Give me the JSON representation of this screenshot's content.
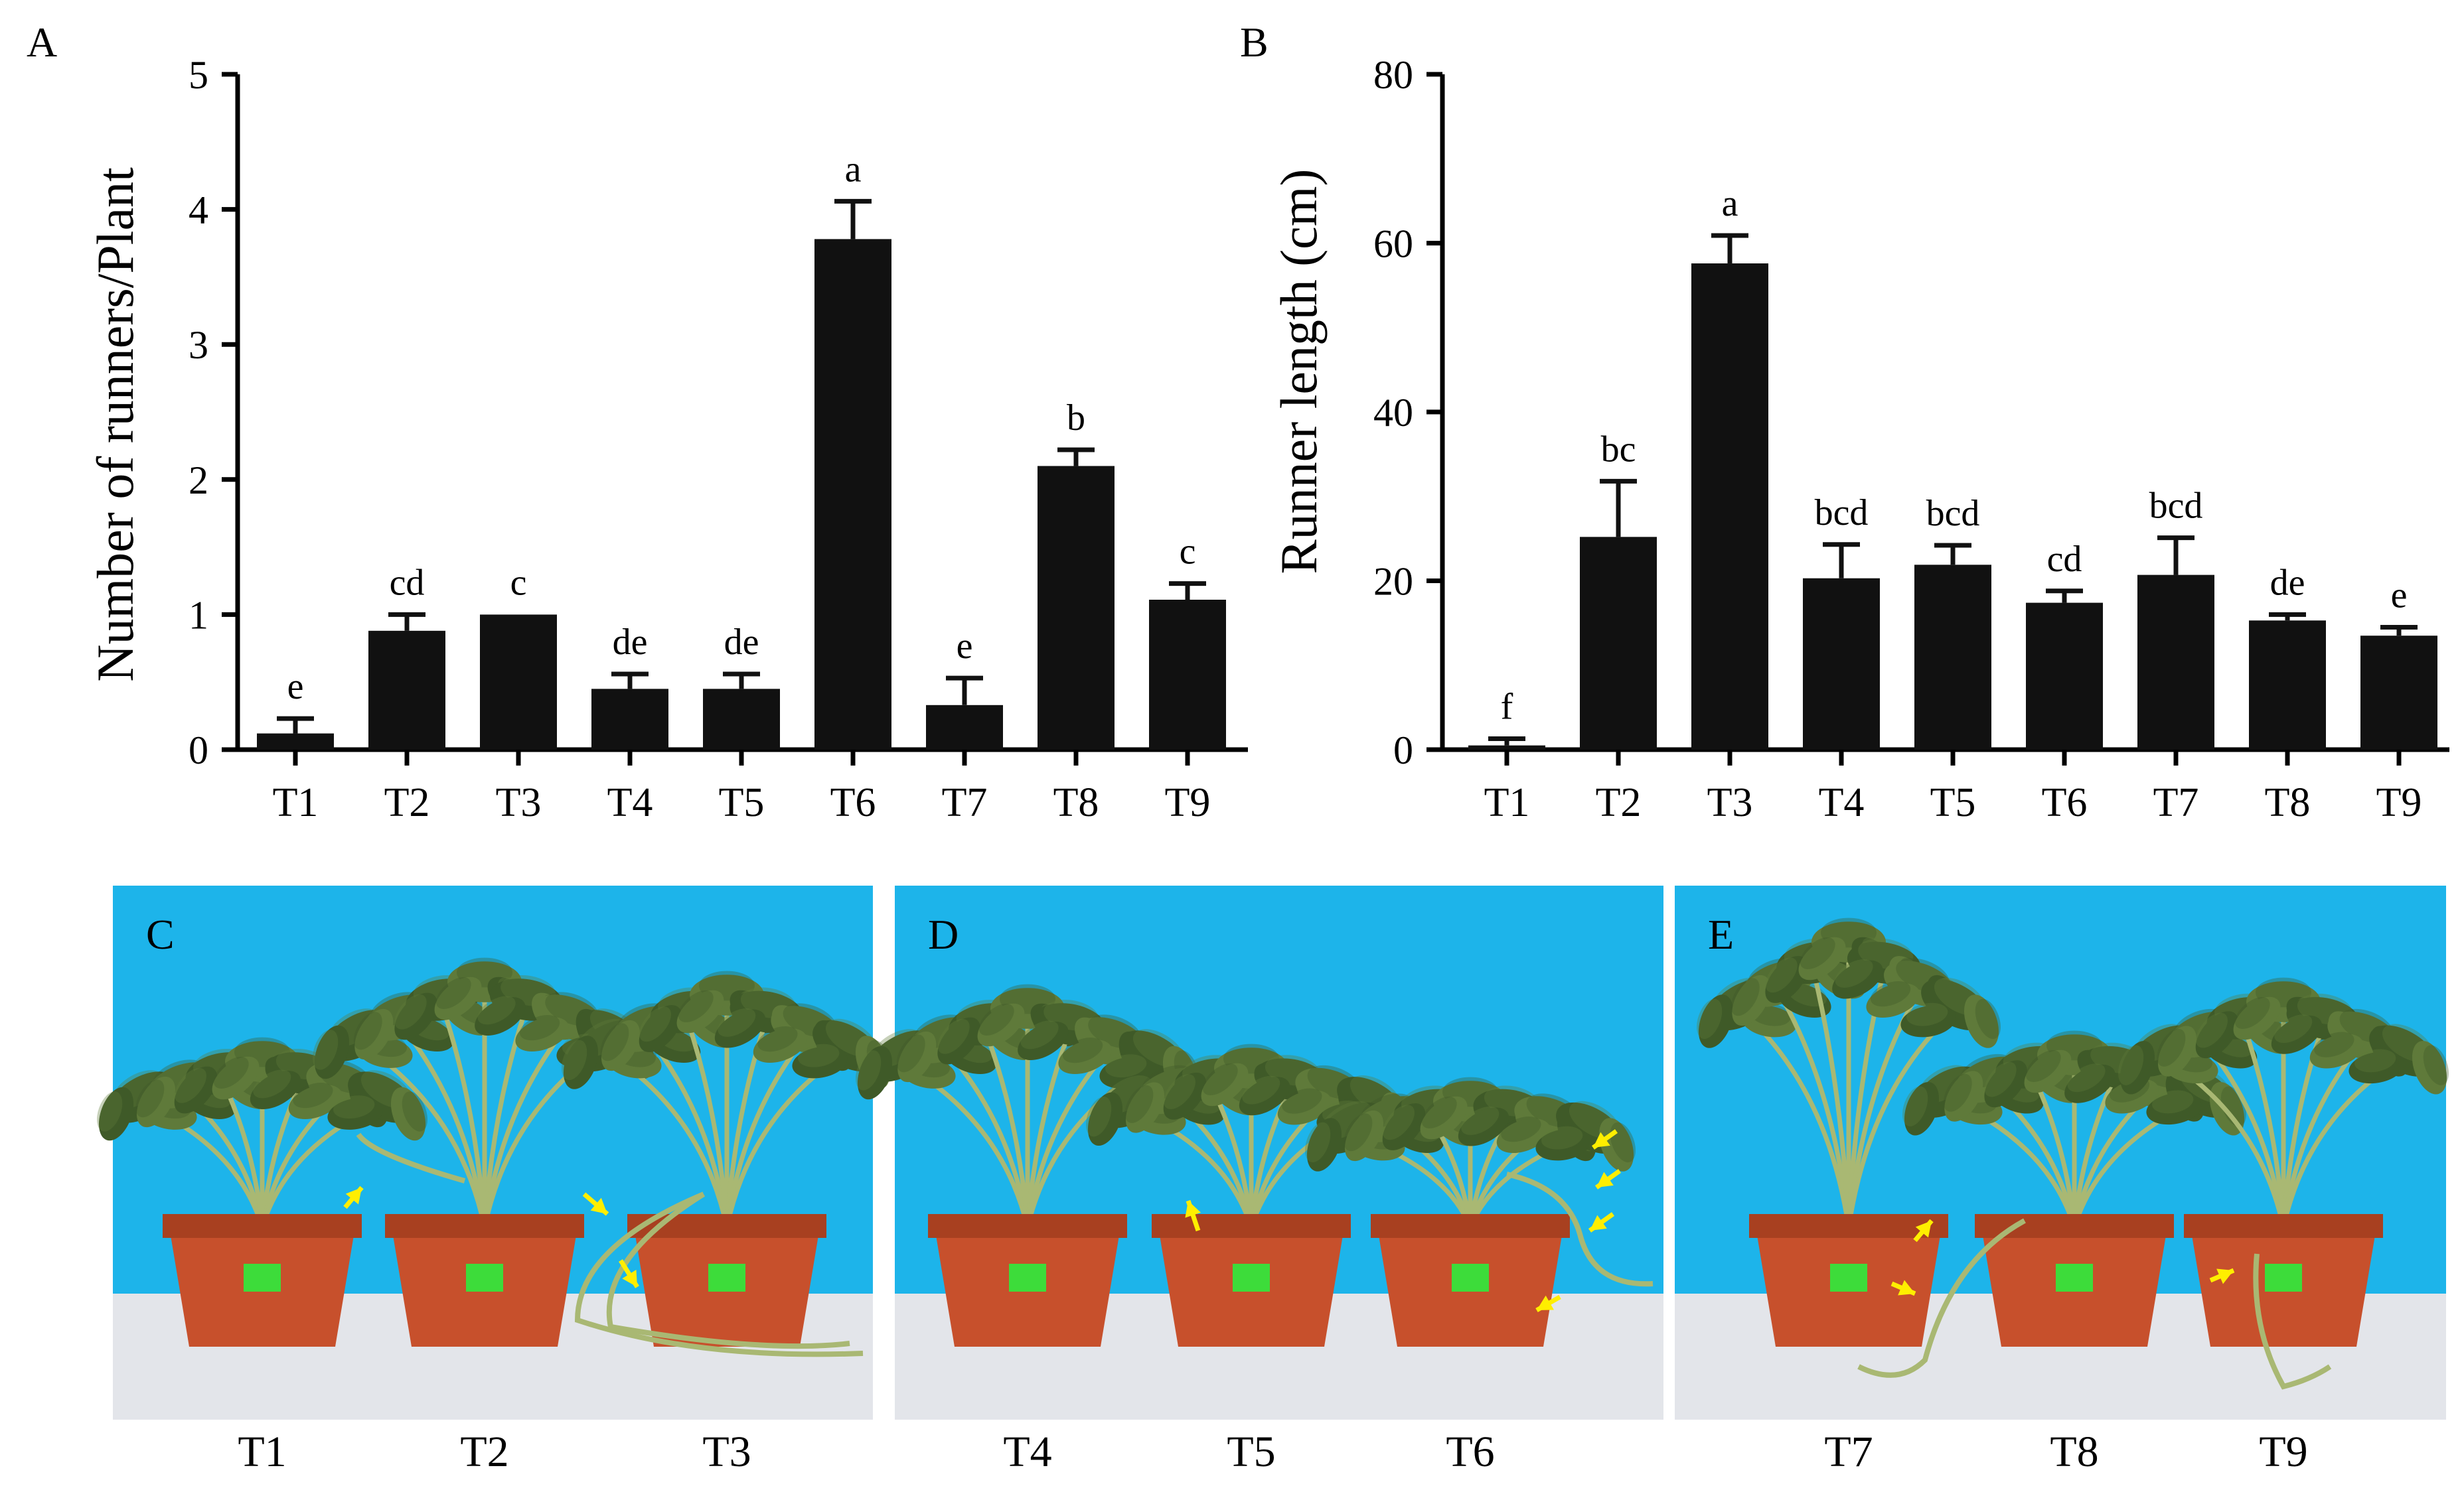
{
  "colors": {
    "bar": "#111111",
    "axis": "#000000",
    "photo_background": "#1db4ea",
    "photo_floor": "#e3e5ea",
    "pot": "#c7502c",
    "pot_rim": "#a84020",
    "leaf": "#5f7a3a",
    "leaf_dark": "#3f5a28",
    "stem": "#a9b873",
    "label_tag": "#3ddc3a",
    "arrow": "#ffee00"
  },
  "chart_data": [
    {
      "panel": "A",
      "type": "bar",
      "title": "",
      "xlabel": "",
      "ylabel": "Number of runners/Plant",
      "categories": [
        "T1",
        "T2",
        "T3",
        "T4",
        "T5",
        "T6",
        "T7",
        "T8",
        "T9"
      ],
      "values": [
        0.12,
        0.88,
        1.0,
        0.45,
        0.45,
        3.78,
        0.33,
        2.1,
        1.11
      ],
      "errors": [
        0.11,
        0.12,
        0.0,
        0.11,
        0.11,
        0.28,
        0.2,
        0.12,
        0.12
      ],
      "significance": [
        "e",
        "cd",
        "c",
        "de",
        "de",
        "a",
        "e",
        "b",
        "c"
      ],
      "ylim": [
        0,
        5
      ],
      "yticks": [
        "0",
        "1",
        "2",
        "3",
        "4",
        "5"
      ],
      "grid": false,
      "legend": "none"
    },
    {
      "panel": "B",
      "type": "bar",
      "title": "",
      "xlabel": "",
      "ylabel": "Runner length (cm)",
      "categories": [
        "T1",
        "T2",
        "T3",
        "T4",
        "T5",
        "T6",
        "T7",
        "T8",
        "T9"
      ],
      "values": [
        0.5,
        25.2,
        57.6,
        20.3,
        21.9,
        17.4,
        20.7,
        15.3,
        13.5
      ],
      "errors": [
        0.8,
        6.6,
        3.3,
        4.0,
        2.3,
        1.4,
        4.4,
        0.7,
        1.0
      ],
      "significance": [
        "f",
        "bc",
        "a",
        "bcd",
        "bcd",
        "cd",
        "bcd",
        "de",
        "e"
      ],
      "ylim": [
        0,
        80
      ],
      "yticks": [
        "0",
        "20",
        "40",
        "60",
        "80"
      ],
      "grid": false,
      "legend": "none"
    }
  ],
  "photos": [
    {
      "panel": "C",
      "labels": [
        "T1",
        "T2",
        "T3"
      ]
    },
    {
      "panel": "D",
      "labels": [
        "T4",
        "T5",
        "T6"
      ]
    },
    {
      "panel": "E",
      "labels": [
        "T7",
        "T8",
        "T9"
      ]
    }
  ]
}
